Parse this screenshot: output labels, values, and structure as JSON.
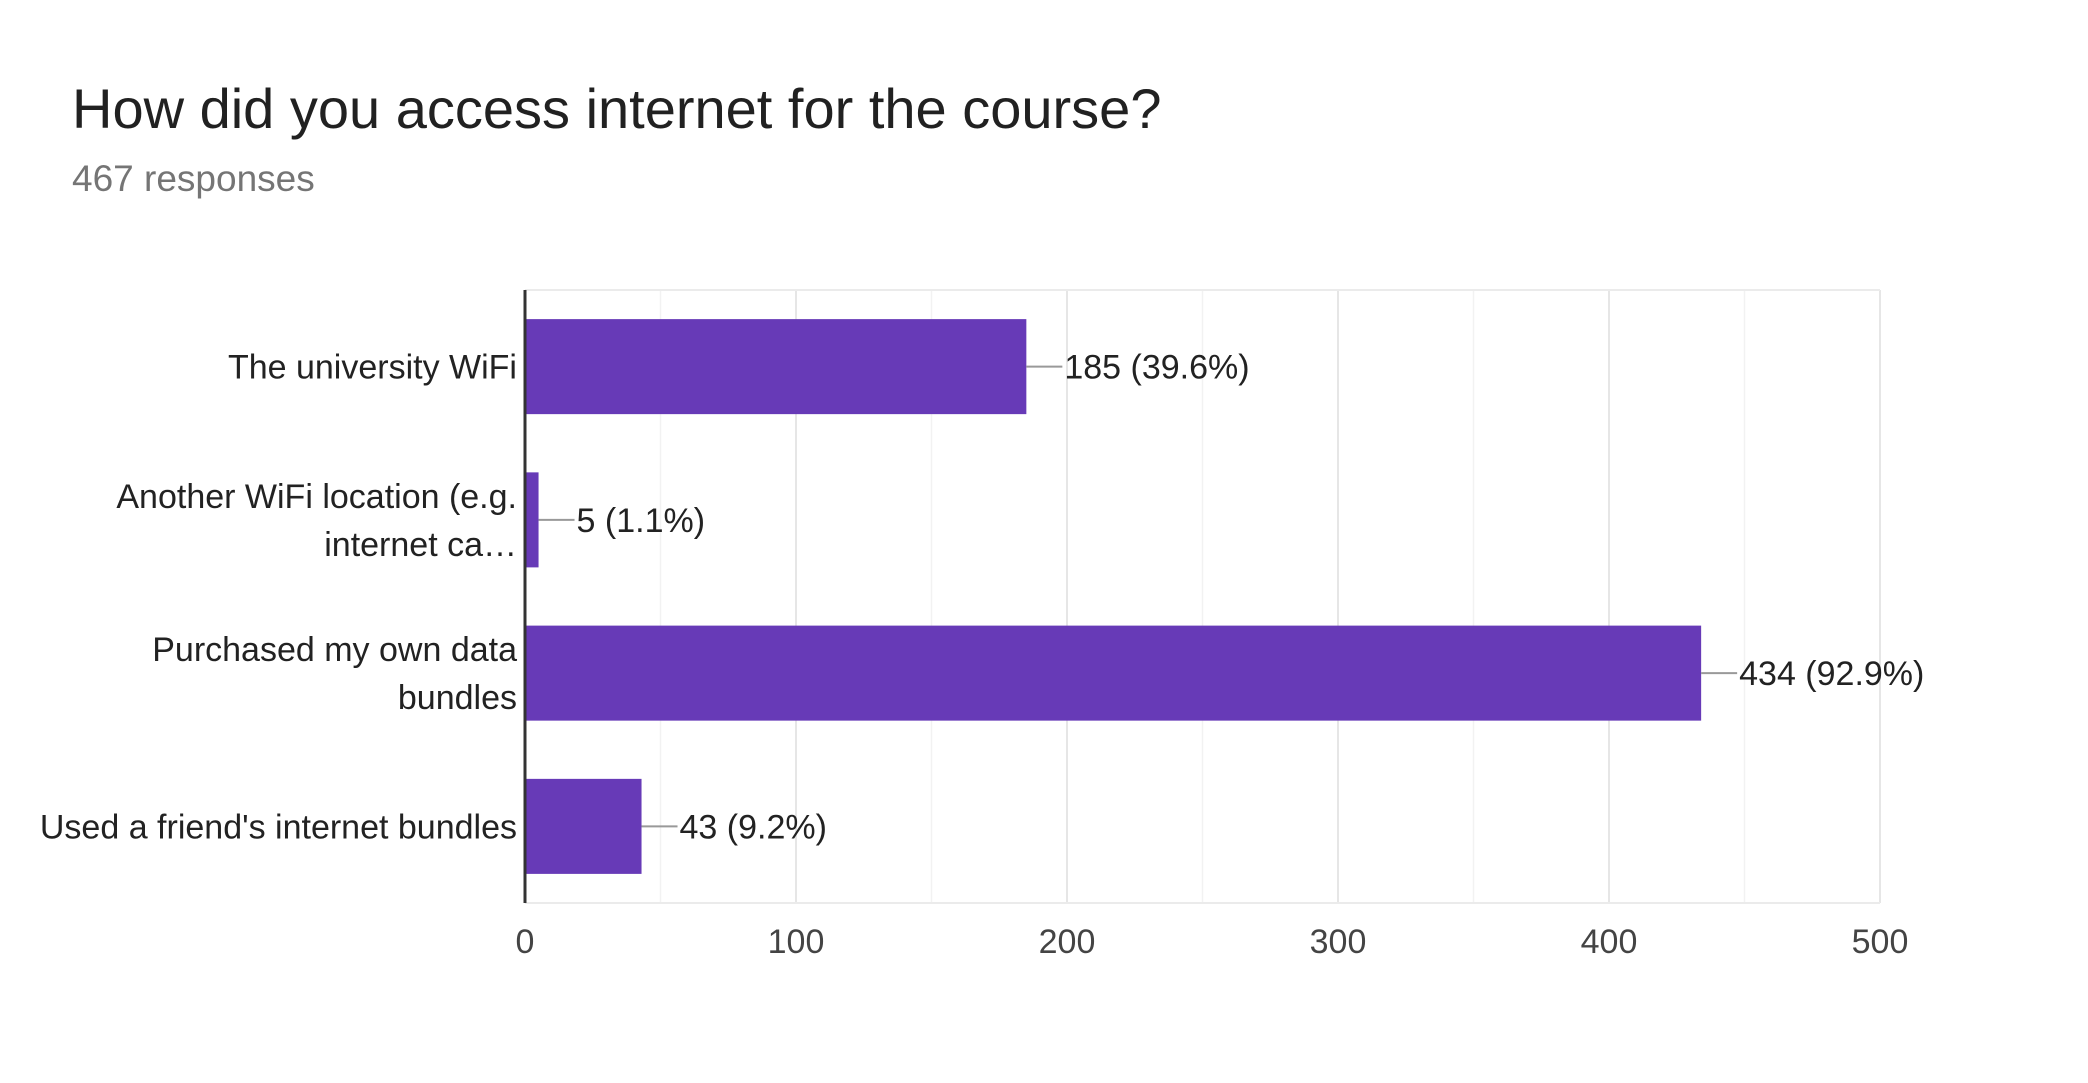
{
  "chart_data": {
    "type": "bar",
    "orientation": "horizontal",
    "title": "How did you access internet for the course?",
    "subtitle": "467 responses",
    "categories": [
      [
        "The university WiFi"
      ],
      [
        "Another WiFi location (e.g.",
        "internet ca…"
      ],
      [
        "Purchased my own data",
        "bundles"
      ],
      [
        "Used a friend's internet bundles"
      ]
    ],
    "values": [
      185,
      5,
      434,
      43
    ],
    "value_labels": [
      "185 (39.6%)",
      "5 (1.1%)",
      "434 (92.9%)",
      "43 (9.2%)"
    ],
    "xlim": [
      0,
      500
    ],
    "x_ticks": [
      0,
      100,
      200,
      300,
      400,
      500
    ],
    "x_tick_labels": [
      "0",
      "100",
      "200",
      "300",
      "400",
      "500"
    ],
    "grid": true,
    "legend": "none",
    "bar_color": "#673ab7"
  }
}
